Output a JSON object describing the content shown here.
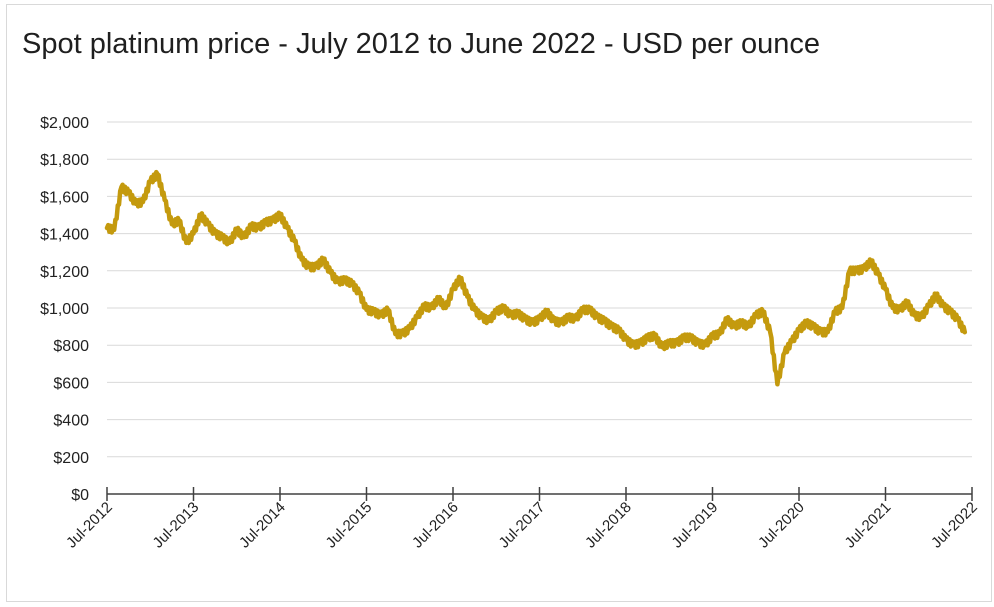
{
  "chart_data": {
    "type": "line",
    "title": "Spot platinum price - July 2012 to June 2022 - USD per ounce",
    "xlabel": "",
    "ylabel": "",
    "ylim": [
      0,
      2000
    ],
    "y_ticks": [
      "$0",
      "$200",
      "$400",
      "$600",
      "$800",
      "$1,000",
      "$1,200",
      "$1,400",
      "$1,600",
      "$1,800",
      "$2,000"
    ],
    "x_ticks": [
      "Jul-2012",
      "Jul-2013",
      "Jul-2014",
      "Jul-2015",
      "Jul-2016",
      "Jul-2017",
      "Jul-2018",
      "Jul-2019",
      "Jul-2020",
      "Jul-2021",
      "Jul-2022"
    ],
    "grid": true,
    "line_color": "#C49A0E",
    "series": [
      {
        "x": [
          "2012-07",
          "2012-08",
          "2012-09",
          "2012-10",
          "2012-11",
          "2012-12",
          "2013-01",
          "2013-02",
          "2013-03",
          "2013-04",
          "2013-05",
          "2013-06",
          "2013-07",
          "2013-08",
          "2013-09",
          "2013-10",
          "2013-11",
          "2013-12",
          "2014-01",
          "2014-02",
          "2014-03",
          "2014-04",
          "2014-05",
          "2014-06",
          "2014-07",
          "2014-08",
          "2014-09",
          "2014-10",
          "2014-11",
          "2014-12",
          "2015-01",
          "2015-02",
          "2015-03",
          "2015-04",
          "2015-05",
          "2015-06",
          "2015-07",
          "2015-08",
          "2015-09",
          "2015-10",
          "2015-11",
          "2015-12",
          "2016-01",
          "2016-02",
          "2016-03",
          "2016-04",
          "2016-05",
          "2016-06",
          "2016-07",
          "2016-08",
          "2016-09",
          "2016-10",
          "2016-11",
          "2016-12",
          "2017-01",
          "2017-02",
          "2017-03",
          "2017-04",
          "2017-05",
          "2017-06",
          "2017-07",
          "2017-08",
          "2017-09",
          "2017-10",
          "2017-11",
          "2017-12",
          "2018-01",
          "2018-02",
          "2018-03",
          "2018-04",
          "2018-05",
          "2018-06",
          "2018-07",
          "2018-08",
          "2018-09",
          "2018-10",
          "2018-11",
          "2018-12",
          "2019-01",
          "2019-02",
          "2019-03",
          "2019-04",
          "2019-05",
          "2019-06",
          "2019-07",
          "2019-08",
          "2019-09",
          "2019-10",
          "2019-11",
          "2019-12",
          "2020-01",
          "2020-02",
          "2020-03",
          "2020-04",
          "2020-05",
          "2020-06",
          "2020-07",
          "2020-08",
          "2020-09",
          "2020-10",
          "2020-11",
          "2020-12",
          "2021-01",
          "2021-02",
          "2021-03",
          "2021-04",
          "2021-05",
          "2021-06",
          "2021-07",
          "2021-08",
          "2021-09",
          "2021-10",
          "2021-11",
          "2021-12",
          "2022-01",
          "2022-02",
          "2022-03",
          "2022-04",
          "2022-05",
          "2022-06"
        ],
        "values": [
          1430,
          1420,
          1650,
          1620,
          1560,
          1570,
          1680,
          1720,
          1580,
          1450,
          1470,
          1350,
          1400,
          1500,
          1450,
          1400,
          1380,
          1350,
          1420,
          1380,
          1440,
          1430,
          1460,
          1470,
          1500,
          1430,
          1360,
          1260,
          1220,
          1220,
          1260,
          1190,
          1140,
          1150,
          1130,
          1080,
          990,
          980,
          960,
          990,
          860,
          860,
          890,
          950,
          1010,
          1000,
          1050,
          1000,
          1100,
          1160,
          1060,
          990,
          950,
          930,
          980,
          1000,
          960,
          970,
          940,
          920,
          940,
          980,
          930,
          920,
          950,
          940,
          990,
          990,
          950,
          930,
          900,
          880,
          830,
          800,
          810,
          840,
          850,
          790,
          810,
          810,
          840,
          840,
          810,
          800,
          850,
          860,
          940,
          900,
          920,
          900,
          960,
          980,
          870,
          590,
          760,
          820,
          880,
          920,
          900,
          870,
          870,
          980,
          1000,
          1200,
          1200,
          1210,
          1250,
          1180,
          1100,
          1000,
          990,
          1030,
          960,
          950,
          1010,
          1070,
          1010,
          980,
          940,
          870
        ]
      }
    ]
  }
}
